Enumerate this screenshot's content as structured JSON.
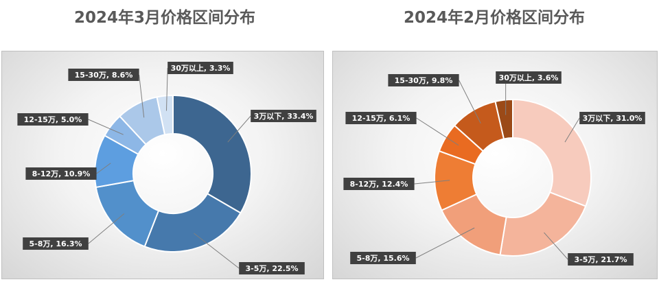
{
  "charts": {
    "march": {
      "title": "2024年3月价格区间分布"
    },
    "feb": {
      "title": "2024年2月价格区间分布"
    }
  },
  "chart_data": [
    {
      "type": "pie",
      "donut": true,
      "title": "2024年3月价格区间分布",
      "categories": [
        "3万以下",
        "3-5万",
        "5-8万",
        "8-12万",
        "12-15万",
        "15-30万",
        "30万以上"
      ],
      "values": [
        33.4,
        22.5,
        16.3,
        10.9,
        5.0,
        8.6,
        3.3
      ],
      "labels": [
        "3万以下, 33.4%",
        "3-5万, 22.5%",
        "5-8万, 16.3%",
        "8-12万, 10.9%",
        "12-15万, 5.0%",
        "15-30万, 8.6%",
        "30万以上, 3.3%"
      ],
      "colors": [
        "#3d6690",
        "#4679ac",
        "#5290cb",
        "#5d9ee0",
        "#8db7e6",
        "#abc8e9",
        "#d1e1f3"
      ],
      "legend": "none"
    },
    {
      "type": "pie",
      "donut": true,
      "title": "2024年2月价格区间分布",
      "categories": [
        "3万以下",
        "3-5万",
        "5-8万",
        "8-12万",
        "12-15万",
        "15-30万",
        "30万以上"
      ],
      "values": [
        31.0,
        21.7,
        15.6,
        12.4,
        6.1,
        9.8,
        3.6
      ],
      "labels": [
        "3万以下, 31.0%",
        "3-5万, 21.7%",
        "5-8万, 15.6%",
        "8-12万, 12.4%",
        "12-15万, 6.1%",
        "15-30万, 9.8%",
        "30万以上, 3.6%"
      ],
      "colors": [
        "#f7cbbd",
        "#f4b49b",
        "#f19f7a",
        "#ee7d34",
        "#e96b21",
        "#c55a1c",
        "#9b4a17"
      ],
      "legend": "none"
    }
  ]
}
